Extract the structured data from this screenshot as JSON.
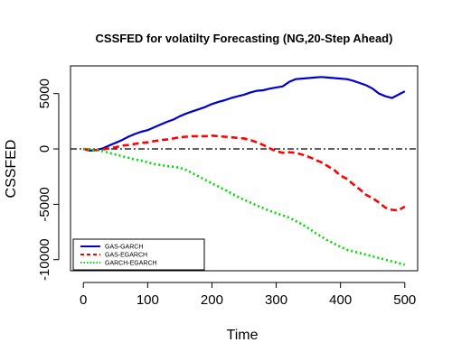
{
  "chart_data": {
    "type": "line",
    "title": "CSSFED for volatilty Forecasting (NG,20-Step Ahead)",
    "xlabel": "Time",
    "ylabel": "CSSFED",
    "xlim": [
      -20,
      520
    ],
    "ylim": [
      -11000,
      7500
    ],
    "xticks": [
      0,
      100,
      200,
      300,
      400,
      500
    ],
    "yticks": [
      -10000,
      -5000,
      0,
      5000
    ],
    "xtick_labels": [
      "0",
      "100",
      "200",
      "300",
      "400",
      "500"
    ],
    "ytick_labels": [
      "-10000",
      "-5000",
      "0",
      "5000"
    ],
    "reference_line": {
      "y": 0,
      "style": "dashdot",
      "color": "#000000"
    },
    "legend": {
      "placement": "bottom-left"
    },
    "series": [
      {
        "name": "GAS-GARCH",
        "color": "#0000cc",
        "style": "solid",
        "x": [
          0,
          10,
          20,
          30,
          40,
          50,
          60,
          70,
          80,
          90,
          100,
          110,
          120,
          130,
          140,
          150,
          160,
          170,
          180,
          190,
          200,
          210,
          220,
          230,
          240,
          250,
          260,
          270,
          280,
          290,
          300,
          310,
          320,
          330,
          340,
          350,
          360,
          370,
          380,
          390,
          400,
          410,
          420,
          430,
          440,
          450,
          460,
          470,
          480,
          490,
          500
        ],
        "y": [
          0,
          -150,
          -100,
          50,
          300,
          550,
          800,
          1100,
          1350,
          1550,
          1700,
          1950,
          2200,
          2450,
          2650,
          2950,
          3200,
          3400,
          3600,
          3800,
          4050,
          4250,
          4400,
          4600,
          4750,
          4900,
          5100,
          5250,
          5300,
          5450,
          5550,
          5650,
          6050,
          6300,
          6350,
          6400,
          6450,
          6500,
          6450,
          6400,
          6350,
          6300,
          6150,
          5950,
          5750,
          5450,
          5000,
          4750,
          4600,
          4900,
          5200
        ]
      },
      {
        "name": "GAS-EGARCH",
        "color": "#ff0000",
        "style": "dashed",
        "x": [
          0,
          10,
          20,
          30,
          40,
          50,
          60,
          70,
          80,
          90,
          100,
          110,
          120,
          130,
          140,
          150,
          160,
          170,
          180,
          190,
          200,
          210,
          220,
          230,
          240,
          250,
          260,
          270,
          280,
          290,
          300,
          310,
          320,
          330,
          340,
          350,
          360,
          370,
          380,
          390,
          400,
          410,
          420,
          430,
          440,
          450,
          460,
          470,
          480,
          490,
          500
        ],
        "y": [
          0,
          -100,
          -100,
          -50,
          50,
          150,
          300,
          350,
          450,
          550,
          600,
          700,
          800,
          850,
          950,
          1050,
          1100,
          1150,
          1150,
          1150,
          1200,
          1150,
          1100,
          1050,
          1000,
          950,
          800,
          600,
          350,
          50,
          -200,
          -350,
          -300,
          -350,
          -500,
          -700,
          -950,
          -1200,
          -1550,
          -1900,
          -2400,
          -2700,
          -3200,
          -3650,
          -4150,
          -4450,
          -4850,
          -5300,
          -5500,
          -5550,
          -5200
        ]
      },
      {
        "name": "GARCH-EGARCH",
        "color": "#00dd00",
        "style": "dotted",
        "x": [
          0,
          10,
          20,
          30,
          40,
          50,
          60,
          70,
          80,
          90,
          100,
          110,
          120,
          130,
          140,
          150,
          160,
          170,
          180,
          190,
          200,
          210,
          220,
          230,
          240,
          250,
          260,
          270,
          280,
          290,
          300,
          310,
          320,
          330,
          340,
          350,
          360,
          370,
          380,
          390,
          400,
          410,
          420,
          430,
          440,
          450,
          460,
          470,
          480,
          490,
          500
        ],
        "y": [
          0,
          -50,
          -100,
          -200,
          -350,
          -500,
          -650,
          -800,
          -950,
          -1050,
          -1200,
          -1350,
          -1450,
          -1550,
          -1600,
          -1700,
          -1900,
          -2200,
          -2500,
          -2800,
          -3100,
          -3400,
          -3700,
          -4000,
          -4300,
          -4600,
          -4850,
          -5100,
          -5350,
          -5600,
          -5800,
          -6000,
          -6200,
          -6500,
          -6800,
          -7150,
          -7550,
          -7900,
          -8250,
          -8550,
          -8850,
          -9100,
          -9250,
          -9400,
          -9550,
          -9700,
          -9850,
          -10000,
          -10150,
          -10300,
          -10450
        ]
      }
    ]
  }
}
